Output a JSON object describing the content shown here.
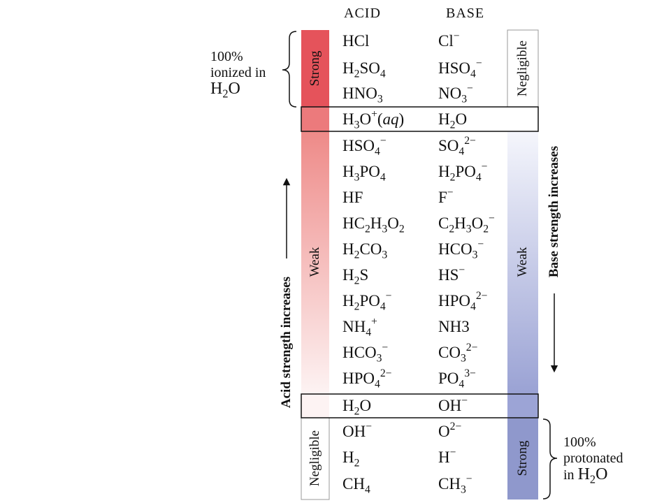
{
  "headers": {
    "acid": "ACID",
    "base": "BASE"
  },
  "rows": [
    {
      "acid": "HCl",
      "base": "Cl⁻"
    },
    {
      "acid": "H₂SO₄",
      "base": "HSO₄⁻"
    },
    {
      "acid": "HNO₃",
      "base": "NO₃⁻"
    },
    {
      "acid": "H₃O⁺(aq)",
      "base": "H₂O"
    },
    {
      "acid": "HSO₄⁻",
      "base": "SO₄²⁻"
    },
    {
      "acid": "H₃PO₄",
      "base": "H₂PO₄⁻"
    },
    {
      "acid": "HF",
      "base": "F⁻"
    },
    {
      "acid": "HC₂H₃O₂",
      "base": "C₂H₃O₂⁻"
    },
    {
      "acid": "H₂CO₃",
      "base": "HCO₃⁻"
    },
    {
      "acid": "H₂S",
      "base": "HS⁻"
    },
    {
      "acid": "H₂PO₄⁻",
      "base": "HPO₄²⁻"
    },
    {
      "acid": "NH₄⁺",
      "base": "NH₃"
    },
    {
      "acid": "HCO₃⁻",
      "base": "CO₃²⁻"
    },
    {
      "acid": "HPO₄²⁻",
      "base": "PO₄³⁻"
    },
    {
      "acid": "H₂O",
      "base": "OH⁻"
    },
    {
      "acid": "OH⁻",
      "base": "O²⁻"
    },
    {
      "acid": "H₂",
      "base": "H⁻"
    },
    {
      "acid": "CH₄",
      "base": "CH₃⁻"
    }
  ],
  "acid_bands": {
    "strong": "Strong",
    "weak": "Weak",
    "negligible": "Negligible"
  },
  "base_bands": {
    "negligible": "Negligible",
    "weak": "Weak",
    "strong": "Strong"
  },
  "notes": {
    "ionized_line1": "100%",
    "ionized_line2": "ionized in",
    "ionized_line3": "H₂O",
    "protonated_line1": "100%",
    "protonated_line2": "protonated",
    "protonated_line3": "in H₂O"
  },
  "axes": {
    "acid": "Acid strength increases",
    "base": "Base strength increases"
  },
  "colors": {
    "acid_strong": "#e5535b",
    "acid_weak_top": "#ee8a88",
    "base_weak_bottom": "#9aa2d4",
    "base_strong": "#8f98cc"
  }
}
